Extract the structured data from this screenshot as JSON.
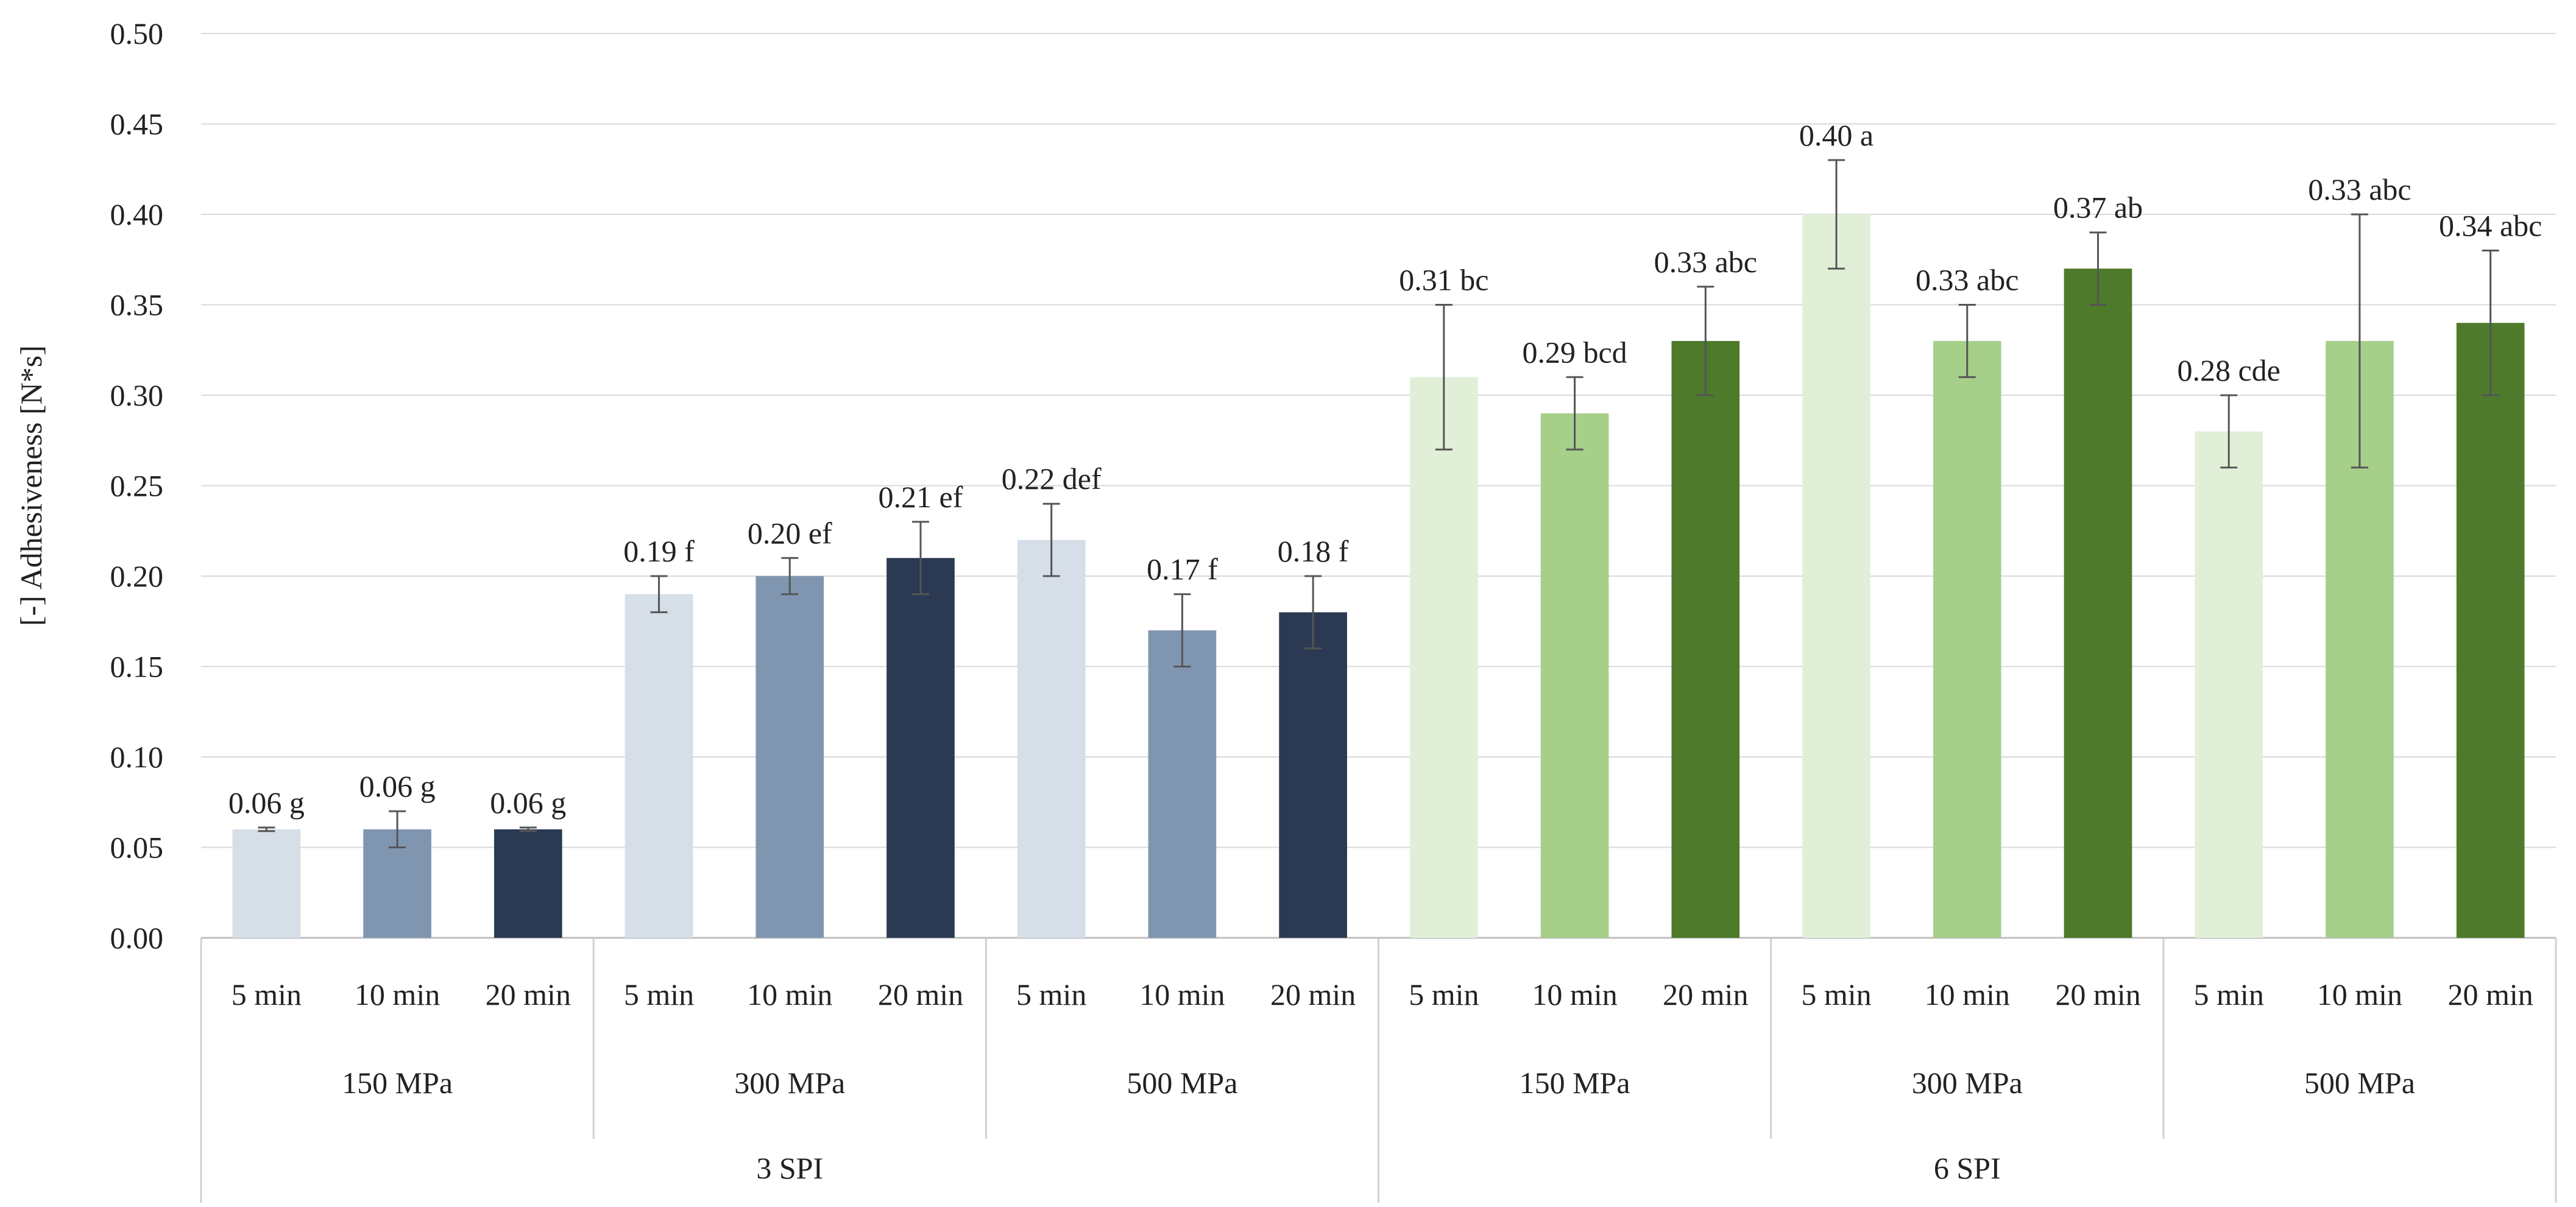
{
  "chart_data": {
    "type": "bar",
    "title": "",
    "xlabel": "",
    "ylabel": "[-] Adhesiveness [N*s]",
    "ylim": [
      0,
      0.5
    ],
    "yticks": [
      0.0,
      0.05,
      0.1,
      0.15,
      0.2,
      0.25,
      0.3,
      0.35,
      0.4,
      0.45,
      0.5
    ],
    "ytick_labels": [
      "0.00",
      "0.05",
      "0.10",
      "0.15",
      "0.20",
      "0.25",
      "0.30",
      "0.35",
      "0.40",
      "0.45",
      "0.50"
    ],
    "grid": true,
    "legend": "none",
    "groups": [
      {
        "name": "3 SPI",
        "pressures": [
          {
            "name": "150 MPa",
            "bars": [
              {
                "time": "5 min",
                "value": 0.06,
                "error": 0.001,
                "label": "0.06 g",
                "color": "#d6dee8"
              },
              {
                "time": "10 min",
                "value": 0.06,
                "error": 0.01,
                "label": "0.06 g",
                "color": "#8096b0"
              },
              {
                "time": "20 min",
                "value": 0.06,
                "error": 0.001,
                "label": "0.06 g",
                "color": "#2b3a52"
              }
            ]
          },
          {
            "name": "300 MPa",
            "bars": [
              {
                "time": "5 min",
                "value": 0.19,
                "error": 0.01,
                "label": "0.19 f",
                "color": "#d6dee8"
              },
              {
                "time": "10 min",
                "value": 0.2,
                "error": 0.01,
                "label": "0.20 ef",
                "color": "#8096b0"
              },
              {
                "time": "20 min",
                "value": 0.21,
                "error": 0.02,
                "label": "0.21 ef",
                "color": "#2b3a52"
              }
            ]
          },
          {
            "name": "500 MPa",
            "bars": [
              {
                "time": "5 min",
                "value": 0.22,
                "error": 0.02,
                "label": "0.22 def",
                "color": "#d6dee8"
              },
              {
                "time": "10 min",
                "value": 0.17,
                "error": 0.02,
                "label": "0.17 f",
                "color": "#8096b0"
              },
              {
                "time": "20 min",
                "value": 0.18,
                "error": 0.02,
                "label": "0.18 f",
                "color": "#2b3a52"
              }
            ]
          }
        ]
      },
      {
        "name": "6 SPI",
        "pressures": [
          {
            "name": "150 MPa",
            "bars": [
              {
                "time": "5 min",
                "value": 0.31,
                "error": 0.04,
                "label": "0.31 bc",
                "color": "#e2efd8"
              },
              {
                "time": "10 min",
                "value": 0.29,
                "error": 0.02,
                "label": "0.29 bcd",
                "color": "#a6cf8a"
              },
              {
                "time": "20 min",
                "value": 0.33,
                "error": 0.03,
                "label": "0.33 abc",
                "color": "#4e7a2c"
              }
            ]
          },
          {
            "name": "300 MPa",
            "bars": [
              {
                "time": "5 min",
                "value": 0.4,
                "error": 0.03,
                "label": "0.40 a",
                "color": "#e2efd8"
              },
              {
                "time": "10 min",
                "value": 0.33,
                "error": 0.02,
                "label": "0.33 abc",
                "color": "#a6cf8a"
              },
              {
                "time": "20 min",
                "value": 0.37,
                "error": 0.02,
                "label": "0.37 ab",
                "color": "#4e7a2c"
              }
            ]
          },
          {
            "name": "500 MPa",
            "bars": [
              {
                "time": "5 min",
                "value": 0.28,
                "error": 0.02,
                "label": "0.28 cde",
                "color": "#e2efd8"
              },
              {
                "time": "10 min",
                "value": 0.33,
                "error": 0.07,
                "label": "0.33 abc",
                "color": "#a6cf8a"
              },
              {
                "time": "20 min",
                "value": 0.34,
                "error": 0.04,
                "label": "0.34 abc",
                "color": "#4e7a2c"
              }
            ]
          }
        ]
      }
    ]
  }
}
